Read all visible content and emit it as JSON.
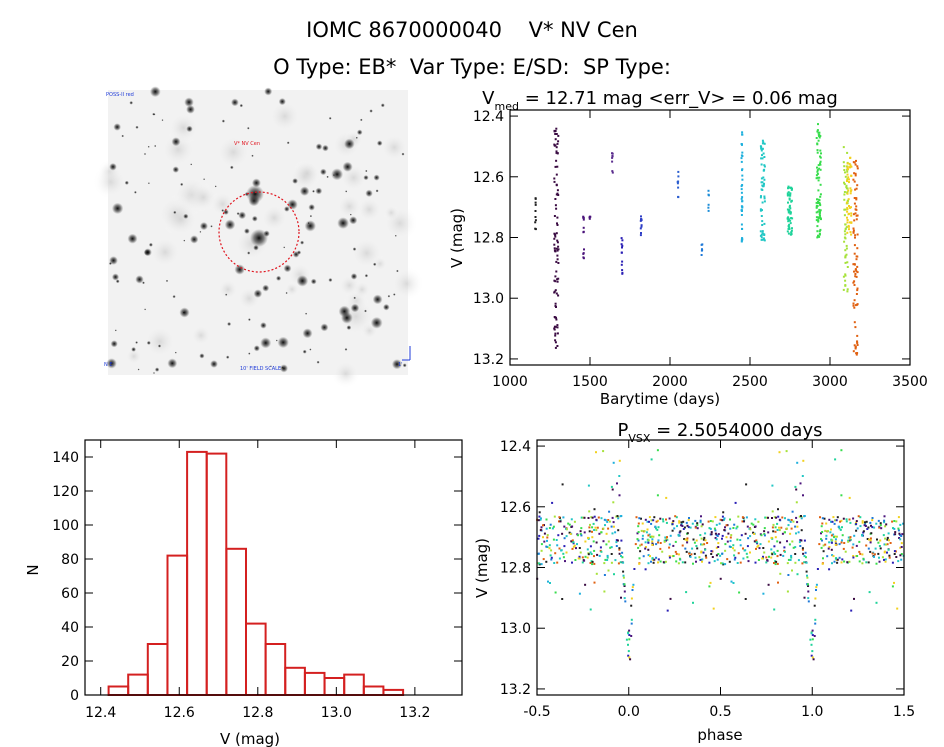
{
  "header": {
    "title_line1": "IOMC 8670000040    V* NV Cen",
    "title_line2": "O Type: EB*  Var Type: E/SD:  SP Type:"
  },
  "finder": {
    "label_top_left": "POSS-II red",
    "label_target": "V* NV Cen",
    "label_bottom_center": "10' FIELD SCALE",
    "label_bottom_left": "N E",
    "label_bottom_right": "1'",
    "marker_color": "#e0141e",
    "text_color": "#1f3bd8"
  },
  "chart_data": [
    {
      "type": "scatter",
      "panel": "lightcurve",
      "title_main": "V",
      "title_sub": "med",
      "title_rest": " = 12.71 mag <err_V> = 0.06 mag",
      "xlabel": "Barytime (days)",
      "ylabel": "V (mag)",
      "xlim": [
        1000,
        3500
      ],
      "ylim": [
        13.22,
        12.38
      ],
      "xticks": [
        1000,
        1500,
        2000,
        2500,
        3000,
        3500
      ],
      "yticks": [
        12.4,
        12.6,
        12.8,
        13.0,
        13.2
      ],
      "ytick_labels": [
        "12.4",
        "12.6",
        "12.8",
        "13.0",
        "13.2"
      ],
      "clusters": [
        {
          "x": 1160,
          "ymin": 12.66,
          "ymax": 12.78,
          "n": 10,
          "color": "#202020"
        },
        {
          "x": 1290,
          "ymin": 12.44,
          "ymax": 13.18,
          "n": 90,
          "color": "#3a0b42"
        },
        {
          "x": 1460,
          "ymin": 12.7,
          "ymax": 12.88,
          "n": 12,
          "color": "#4a137a"
        },
        {
          "x": 1500,
          "ymin": 12.72,
          "ymax": 12.74,
          "n": 4,
          "color": "#4a137a"
        },
        {
          "x": 1640,
          "ymin": 12.52,
          "ymax": 12.62,
          "n": 8,
          "color": "#5b2d8e"
        },
        {
          "x": 1700,
          "ymin": 12.8,
          "ymax": 12.92,
          "n": 12,
          "color": "#2a1fb5"
        },
        {
          "x": 1820,
          "ymin": 12.66,
          "ymax": 12.8,
          "n": 10,
          "color": "#2e3ec6"
        },
        {
          "x": 2050,
          "ymin": 12.58,
          "ymax": 12.67,
          "n": 8,
          "color": "#2a5dcf"
        },
        {
          "x": 2200,
          "ymin": 12.82,
          "ymax": 12.86,
          "n": 6,
          "color": "#1f79d8"
        },
        {
          "x": 2240,
          "ymin": 12.64,
          "ymax": 12.74,
          "n": 6,
          "color": "#1f8ed8"
        },
        {
          "x": 2450,
          "ymin": 12.45,
          "ymax": 12.84,
          "n": 40,
          "color": "#1fb0dd"
        },
        {
          "x": 2580,
          "ymin": 12.48,
          "ymax": 12.82,
          "n": 60,
          "color": "#22c7c5"
        },
        {
          "x": 2750,
          "ymin": 12.63,
          "ymax": 12.8,
          "n": 60,
          "color": "#1fd39a"
        },
        {
          "x": 2930,
          "ymin": 12.42,
          "ymax": 12.8,
          "n": 80,
          "color": "#38dd4c"
        },
        {
          "x": 3100,
          "ymin": 12.5,
          "ymax": 12.98,
          "n": 60,
          "color": "#a6e23a"
        },
        {
          "x": 3120,
          "ymin": 12.52,
          "ymax": 12.8,
          "n": 50,
          "color": "#f2d11e"
        },
        {
          "x": 3160,
          "ymin": 12.54,
          "ymax": 13.2,
          "n": 80,
          "color": "#e06010"
        }
      ]
    },
    {
      "type": "bar",
      "panel": "histogram",
      "xlabel": "V (mag)",
      "ylabel": "N",
      "xlim": [
        12.36,
        13.32
      ],
      "ylim": [
        0,
        150
      ],
      "xticks": [
        12.4,
        12.6,
        12.8,
        13.0,
        13.2
      ],
      "xtick_labels": [
        "12.4",
        "12.6",
        "12.8",
        "13.0",
        "13.2"
      ],
      "yticks": [
        0,
        20,
        40,
        60,
        80,
        100,
        120,
        140
      ],
      "bin_width": 0.05,
      "bin_starts": [
        12.42,
        12.47,
        12.52,
        12.57,
        12.62,
        12.67,
        12.72,
        12.77,
        12.82,
        12.87,
        12.92,
        12.97,
        13.02,
        13.07,
        13.12,
        13.17
      ],
      "values": [
        5,
        12,
        30,
        82,
        143,
        142,
        86,
        42,
        30,
        16,
        13,
        10,
        12,
        5,
        3,
        0
      ],
      "color": "#d42020"
    },
    {
      "type": "scatter",
      "panel": "phased",
      "title_main": "P",
      "title_sub": "VSX",
      "title_rest": " = 2.5054000 days",
      "xlabel": "phase",
      "ylabel": "V (mag)",
      "xlim": [
        -0.5,
        1.5
      ],
      "ylim": [
        13.22,
        12.38
      ],
      "xticks": [
        -0.5,
        0.0,
        0.5,
        1.0,
        1.5
      ],
      "xtick_labels": [
        "-0.5",
        "0.0",
        "0.5",
        "1.0",
        "1.5"
      ],
      "yticks": [
        12.4,
        12.6,
        12.8,
        13.0,
        13.2
      ],
      "ytick_labels": [
        "12.4",
        "12.6",
        "12.8",
        "13.0",
        "13.2"
      ],
      "period_days": 2.5054,
      "eclipse_depth": 0.48,
      "base_mag": 12.71,
      "palette": [
        "#202020",
        "#3a0b42",
        "#4a137a",
        "#2a1fb5",
        "#1f79d8",
        "#1fb0dd",
        "#22c7c5",
        "#1fd39a",
        "#38dd4c",
        "#a6e23a",
        "#f2d11e",
        "#e06010"
      ]
    }
  ]
}
